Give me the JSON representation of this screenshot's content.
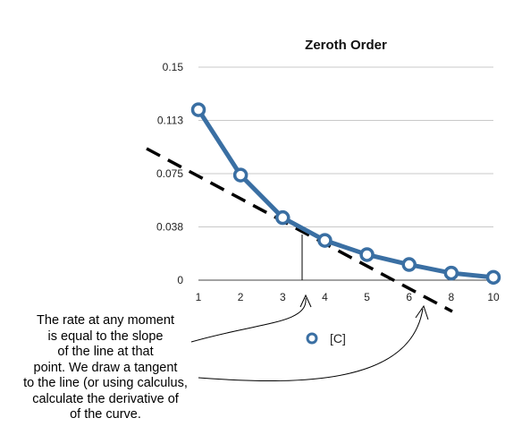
{
  "chart_data": {
    "type": "line",
    "title": "Zeroth Order",
    "categories": [
      "1",
      "2",
      "3",
      "4",
      "5",
      "6",
      "8",
      "10"
    ],
    "series": [
      {
        "name": "[C]",
        "color": "#3a6fa3",
        "values": [
          0.12,
          0.074,
          0.044,
          0.028,
          0.018,
          0.011,
          0.005,
          0.002
        ]
      }
    ],
    "y_ticks": [
      "0.15",
      "0.113",
      "0.075",
      "0.038",
      "0"
    ],
    "ylim": [
      0,
      0.15
    ],
    "grid": true,
    "legend": "bottom",
    "annotation": "The rate at any moment\nis equal to the slope\nof the line at that\npoint. We draw a tangent\nto the line (or using calculus,\ncalculate the derivative of\nof the curve."
  }
}
